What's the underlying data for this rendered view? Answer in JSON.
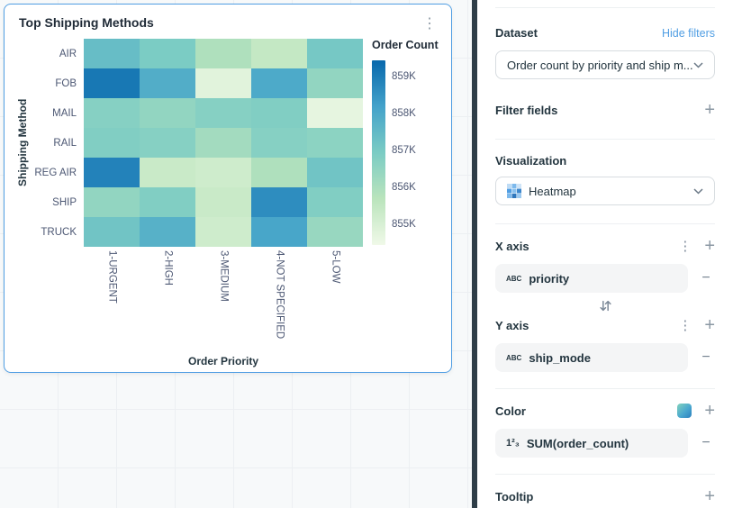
{
  "card": {
    "title": "Top Shipping Methods"
  },
  "chart_data": {
    "type": "heatmap",
    "title": "Top Shipping Methods",
    "xlabel": "Order Priority",
    "ylabel": "Shipping Method",
    "legend_title": "Order Count",
    "x_categories": [
      "1-URGENT",
      "2-HIGH",
      "3-MEDIUM",
      "4-NOT SPECIFIED",
      "5-LOW"
    ],
    "y_categories": [
      "AIR",
      "FOB",
      "MAIL",
      "RAIL",
      "REG AIR",
      "SHIP",
      "TRUCK"
    ],
    "values": [
      [
        857500,
        857100,
        856200,
        855800,
        857200
      ],
      [
        859000,
        857900,
        855200,
        858000,
        856700
      ],
      [
        856900,
        856700,
        856900,
        857000,
        855100
      ],
      [
        857000,
        856900,
        856400,
        856900,
        856800
      ],
      [
        858800,
        855700,
        855600,
        856200,
        857300
      ],
      [
        856700,
        857000,
        855700,
        858600,
        857000
      ],
      [
        857300,
        857800,
        855600,
        858100,
        856600
      ]
    ],
    "color_scale": {
      "domain": [
        854900,
        859300
      ],
      "stops": [
        "#f0f9e8",
        "#bae4bc",
        "#7bccc4",
        "#43a2ca",
        "#0868ac"
      ]
    },
    "legend_ticks": [
      "859K",
      "858K",
      "857K",
      "856K",
      "855K"
    ],
    "grid": false,
    "legend_position": "right"
  },
  "panel": {
    "dataset": {
      "label": "Dataset",
      "hide_filters": "Hide filters",
      "selected": "Order count by priority and ship m..."
    },
    "filter_fields": {
      "label": "Filter fields"
    },
    "visualization": {
      "label": "Visualization",
      "selected": "Heatmap"
    },
    "x_axis": {
      "label": "X axis",
      "field": "priority"
    },
    "y_axis": {
      "label": "Y axis",
      "field": "ship_mode"
    },
    "color": {
      "label": "Color",
      "field": "SUM(order_count)"
    },
    "tooltip": {
      "label": "Tooltip"
    }
  },
  "icons": {
    "kebab": "⋮",
    "plus": "+",
    "minus": "−",
    "string_type": "ABC",
    "number_type": "1²₃"
  }
}
